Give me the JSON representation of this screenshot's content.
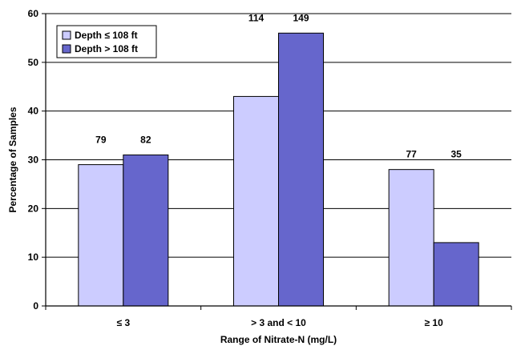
{
  "chart_data": {
    "type": "bar",
    "categories": [
      "≤ 3",
      "> 3 and < 10",
      "≥ 10"
    ],
    "series": [
      {
        "name": "Depth ≤ 108 ft",
        "values": [
          29,
          43,
          28
        ],
        "data_labels": [
          "79",
          "114",
          "77"
        ],
        "color": "#CCCCFF"
      },
      {
        "name": "Depth > 108 ft",
        "values": [
          31,
          56,
          13
        ],
        "data_labels": [
          "82",
          "149",
          "35"
        ],
        "color": "#6666CC"
      }
    ],
    "xlabel": "Range of Nitrate-N (mg/L)",
    "ylabel": "Percentage of Samples",
    "ylim": [
      0,
      60
    ],
    "yticks": [
      "0",
      "10",
      "20",
      "30",
      "40",
      "50",
      "60"
    ],
    "ytick_values": [
      0,
      10,
      20,
      30,
      40,
      50,
      60
    ],
    "grid": true,
    "legend_position": "top-left"
  }
}
